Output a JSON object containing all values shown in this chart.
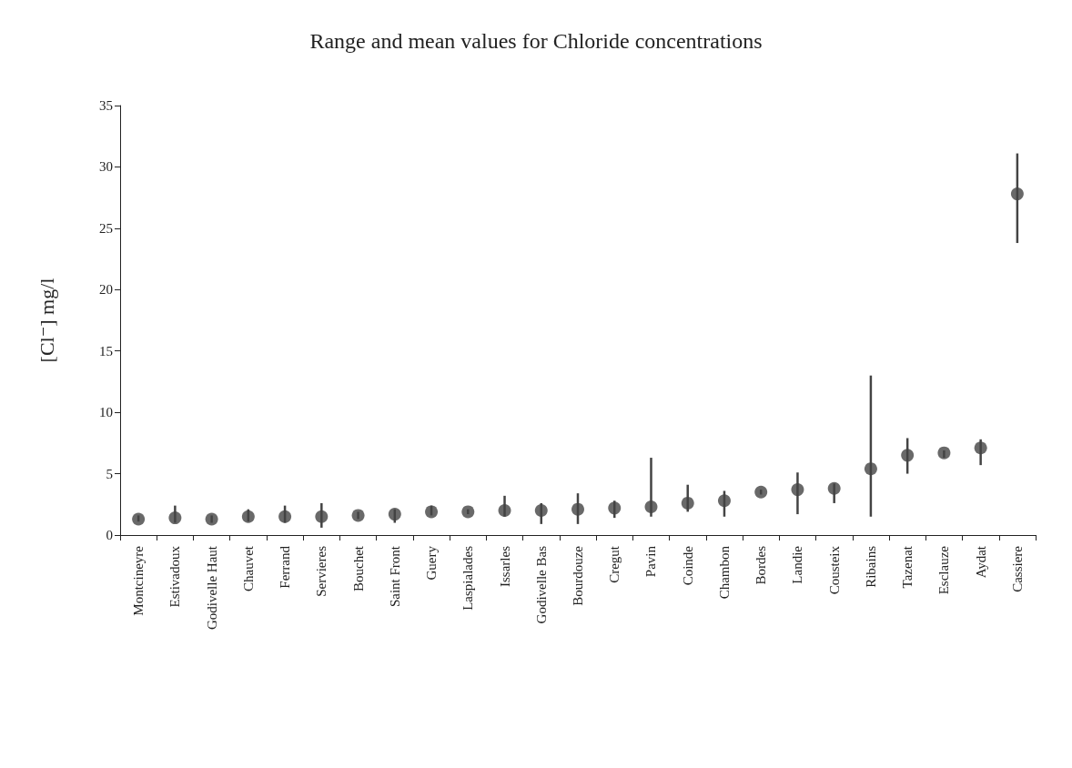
{
  "chart_data": {
    "type": "scatter",
    "title": "Range and mean values for Chloride concentrations",
    "ylabel": "[Cl⁻] mg/l",
    "categories": [
      "Montcineyre",
      "Estivadoux",
      "Godivelle Haut",
      "Chauvet",
      "Ferrand",
      "Servieres",
      "Bouchet",
      "Saint Front",
      "Guery",
      "Laspialades",
      "Issarles",
      "Godivelle Bas",
      "Bourdouze",
      "Cregut",
      "Pavin",
      "Coinde",
      "Chambon",
      "Bordes",
      "Landie",
      "Cousteix",
      "Ribains",
      "Tazenat",
      "Esclauze",
      "Aydat",
      "Cassiere"
    ],
    "values": [
      1.3,
      1.4,
      1.3,
      1.5,
      1.5,
      1.5,
      1.6,
      1.7,
      1.9,
      1.9,
      2.0,
      2.0,
      2.1,
      2.2,
      2.3,
      2.6,
      2.8,
      3.5,
      3.7,
      3.8,
      5.4,
      6.5,
      6.7,
      7.1,
      27.8
    ],
    "errors": [
      [
        1.1,
        1.6
      ],
      [
        1.0,
        2.4
      ],
      [
        1.0,
        1.6
      ],
      [
        1.1,
        2.1
      ],
      [
        1.0,
        2.4
      ],
      [
        0.6,
        2.6
      ],
      [
        1.3,
        1.9
      ],
      [
        1.0,
        2.1
      ],
      [
        1.6,
        2.4
      ],
      [
        1.7,
        2.1
      ],
      [
        1.5,
        3.2
      ],
      [
        0.9,
        2.6
      ],
      [
        0.9,
        3.4
      ],
      [
        1.4,
        2.8
      ],
      [
        1.5,
        6.3
      ],
      [
        1.9,
        4.1
      ],
      [
        1.5,
        3.6
      ],
      [
        3.3,
        3.7
      ],
      [
        1.7,
        5.1
      ],
      [
        2.6,
        4.2
      ],
      [
        1.5,
        13.0
      ],
      [
        5.0,
        7.9
      ],
      [
        6.3,
        6.9
      ],
      [
        5.7,
        7.8
      ],
      [
        23.8,
        31.1
      ]
    ],
    "color": "#444444",
    "marker": "circle",
    "ylim": [
      0,
      35
    ],
    "yticks": [
      0,
      5,
      10,
      15,
      20,
      25,
      30,
      35
    ],
    "grid": false
  }
}
